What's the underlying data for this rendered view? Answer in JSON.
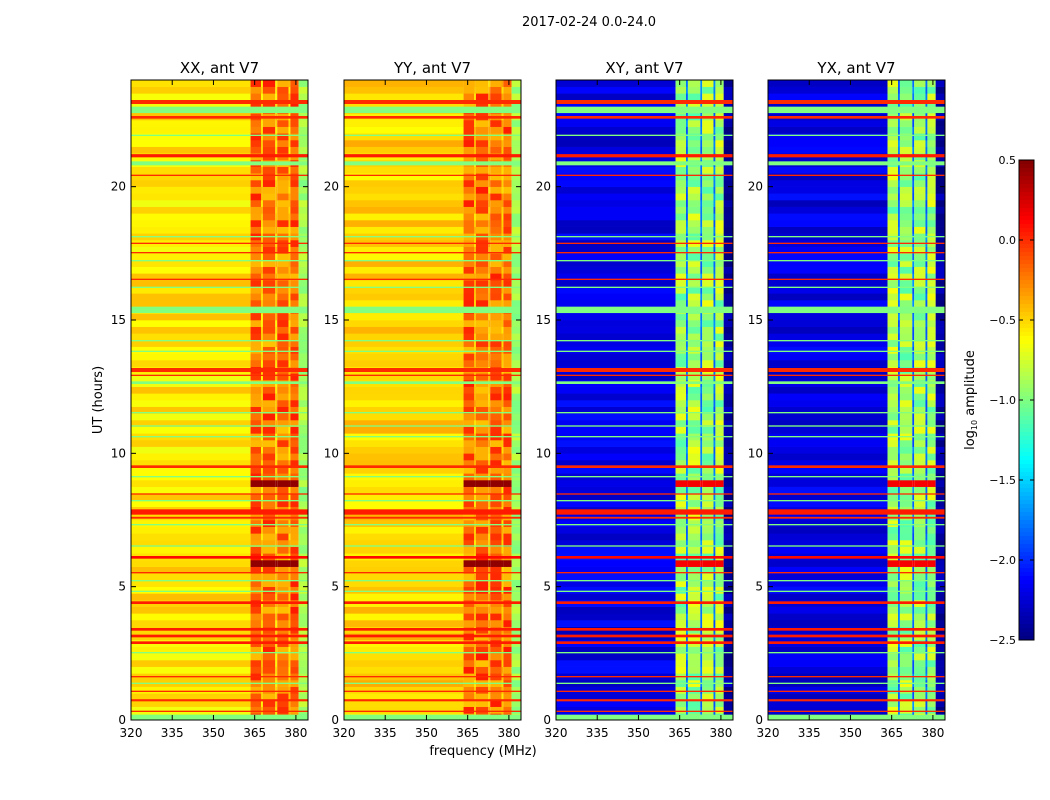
{
  "chart_data": {
    "type": "heatmap",
    "suptitle": "2017-02-24 0.0-24.0",
    "xlabel": "frequency (MHz)",
    "ylabel": "UT (hours)",
    "xlim": [
      320,
      384.4
    ],
    "ylim": [
      0,
      24
    ],
    "xticks": [
      320,
      335,
      350,
      365,
      380
    ],
    "yticks": [
      0,
      5,
      10,
      15,
      20
    ],
    "colorbar": {
      "label_prefix": "log",
      "label_sub": "10",
      "label_suffix": " amplitude",
      "range": [
        -2.5,
        0.5
      ],
      "ticks": [
        "0.5",
        "0.0",
        "−0.5",
        "−1.0",
        "−1.5",
        "−2.0",
        "−2.5"
      ],
      "tick_values": [
        0.5,
        0.0,
        -0.5,
        -1.0,
        -1.5,
        -2.0,
        -2.5
      ],
      "colormap": "jet"
    },
    "signal_columns_mhz": [
      [
        363.5,
        367.3
      ],
      [
        368.0,
        372.5
      ],
      [
        373.2,
        377.3
      ],
      [
        378.0,
        381.0
      ]
    ],
    "panels": [
      {
        "title": "XX, ant V7",
        "low_band": -0.55,
        "signal": -0.2,
        "gap": -0.5,
        "above_band": -0.9,
        "event": 0.45
      },
      {
        "title": "YY, ant V7",
        "low_band": -0.5,
        "signal": -0.2,
        "gap": -0.45,
        "above_band": -0.9,
        "event": 0.45
      },
      {
        "title": "XY, ant V7",
        "low_band": -2.2,
        "signal": -0.9,
        "gap": -1.8,
        "above_band": -2.4,
        "event": 0.15
      },
      {
        "title": "YX, ant V7",
        "low_band": -2.2,
        "signal": -0.9,
        "gap": -1.8,
        "above_band": -2.4,
        "event": 0.15
      }
    ],
    "events_ut": [
      [
        8.6,
        9.0
      ],
      [
        5.6,
        6.0
      ]
    ],
    "flagged_rows": [
      [
        23.1,
        23.25,
        0.0
      ],
      [
        22.55,
        22.65,
        0.0
      ],
      [
        22.76,
        23.0,
        -1.0
      ],
      [
        21.1,
        21.22,
        0.05
      ],
      [
        20.8,
        20.95,
        -1.0
      ],
      [
        20.4,
        20.45,
        0.0
      ],
      [
        21.9,
        21.95,
        -1.0
      ],
      [
        18.1,
        18.15,
        -1.0
      ],
      [
        17.85,
        17.9,
        0.0
      ],
      [
        17.5,
        17.55,
        0.0
      ],
      [
        17.2,
        17.25,
        -1.0
      ],
      [
        16.5,
        16.55,
        0.0
      ],
      [
        16.2,
        16.25,
        -1.0
      ],
      [
        15.26,
        15.5,
        -1.0
      ],
      [
        14.2,
        14.25,
        -1.0
      ],
      [
        13.8,
        13.85,
        -1.0
      ],
      [
        13.05,
        13.2,
        0.0
      ],
      [
        12.9,
        12.95,
        0.0
      ],
      [
        12.6,
        12.7,
        -1.0
      ],
      [
        11.5,
        11.55,
        -1.0
      ],
      [
        11.0,
        11.05,
        -1.0
      ],
      [
        10.6,
        10.65,
        -1.0
      ],
      [
        9.45,
        9.55,
        0.0
      ],
      [
        9.1,
        9.15,
        -1.0
      ],
      [
        8.45,
        8.5,
        0.0
      ],
      [
        8.2,
        8.25,
        -1.0
      ],
      [
        7.7,
        7.9,
        0.05
      ],
      [
        7.55,
        7.62,
        0.0
      ],
      [
        7.3,
        7.35,
        -1.0
      ],
      [
        6.5,
        6.55,
        -1.0
      ],
      [
        6.05,
        6.15,
        0.1
      ],
      [
        5.5,
        5.55,
        0.0
      ],
      [
        5.2,
        5.25,
        -1.0
      ],
      [
        4.8,
        4.85,
        -1.0
      ],
      [
        4.35,
        4.45,
        0.05
      ],
      [
        3.35,
        3.45,
        0.05
      ],
      [
        3.1,
        3.2,
        0.05
      ],
      [
        2.85,
        2.95,
        0.05
      ],
      [
        2.5,
        2.55,
        -1.0
      ],
      [
        1.6,
        1.65,
        0.0
      ],
      [
        1.35,
        1.4,
        -1.0
      ],
      [
        1.05,
        1.1,
        0.0
      ],
      [
        0.7,
        0.78,
        0.0
      ],
      [
        0.3,
        0.35,
        0.0
      ],
      [
        0.0,
        0.2,
        -1.0
      ]
    ]
  }
}
